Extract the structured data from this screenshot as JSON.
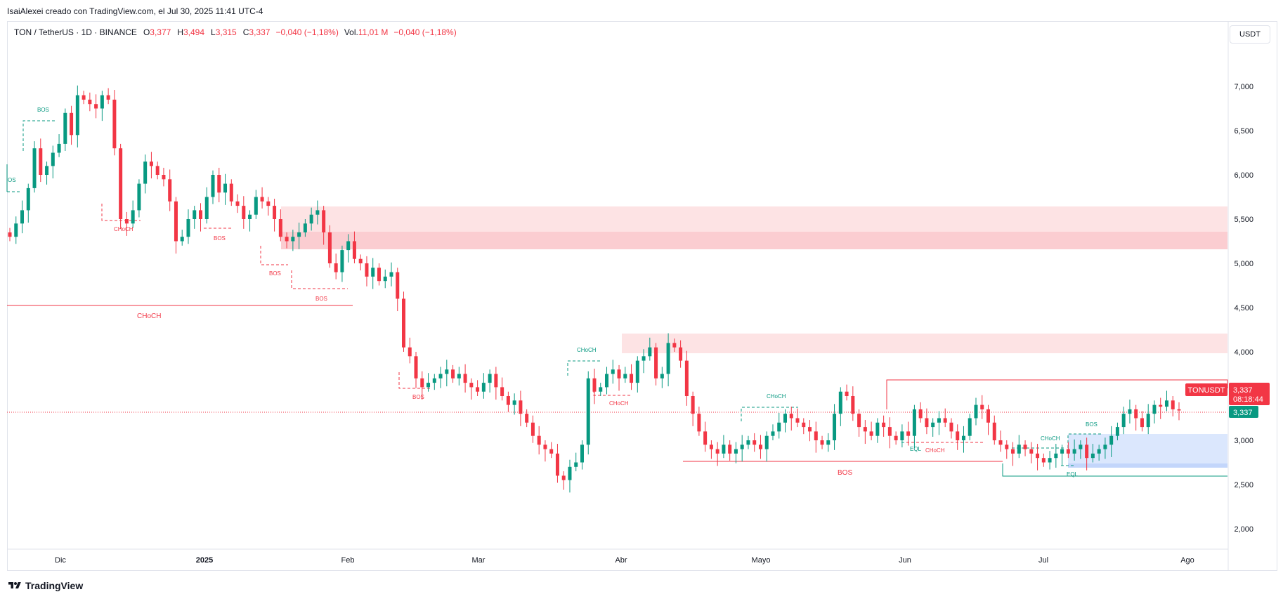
{
  "caption": "IsaiAlexei creado con TradingView.com, el Jul 30, 2025 11:41 UTC-4",
  "legend": {
    "symbol": "TON / TetherUS · 1D · BINANCE",
    "o_label": "O",
    "o_value": "3,377",
    "h_label": "H",
    "h_value": "3,494",
    "l_label": "L",
    "l_value": "3,315",
    "c_label": "C",
    "c_value": "3,337",
    "change": "−0,040 (−1,18%)",
    "vol_label": "Vol.",
    "vol_value": "11,01 M",
    "vol_change": "−0,040 (−1,18%)"
  },
  "currency_button": "USDT",
  "price_axis": {
    "ticks": [
      "7,000",
      "6,500",
      "6,000",
      "5,500",
      "5,000",
      "4,500",
      "4,000",
      "3,000",
      "2,500",
      "2,000"
    ],
    "symbol_tag": "TONUSDT",
    "last_price": "3,337",
    "countdown": "08:18:44",
    "last_price_green": "3,337"
  },
  "time_axis": {
    "labels": [
      "Dic",
      "2025",
      "Feb",
      "Mar",
      "Abr",
      "Mayo",
      "Jun",
      "Jul",
      "Ago"
    ]
  },
  "chart_data": {
    "type": "candlestick",
    "symbol": "TON / TetherUS",
    "interval": "1D",
    "exchange": "BINANCE",
    "ylim": [
      1.8,
      7.7
    ],
    "y_ticks": [
      2.0,
      2.5,
      3.0,
      4.0,
      4.5,
      5.0,
      5.5,
      6.0,
      6.5,
      7.0
    ],
    "closes": [
      5.3,
      5.45,
      5.6,
      5.85,
      6.3,
      6.0,
      6.1,
      6.25,
      6.35,
      6.7,
      6.45,
      6.9,
      6.85,
      6.8,
      6.75,
      6.9,
      6.85,
      6.3,
      5.5,
      5.45,
      5.6,
      5.9,
      6.15,
      6.1,
      6.0,
      5.95,
      5.7,
      5.25,
      5.3,
      5.5,
      5.6,
      5.5,
      5.75,
      6.0,
      5.8,
      5.9,
      5.7,
      5.65,
      5.5,
      5.55,
      5.75,
      5.7,
      5.65,
      5.5,
      5.3,
      5.25,
      5.3,
      5.35,
      5.45,
      5.55,
      5.6,
      5.35,
      5.0,
      4.9,
      5.15,
      5.25,
      5.05,
      5.0,
      4.85,
      4.95,
      4.8,
      4.85,
      4.9,
      4.6,
      4.05,
      3.95,
      3.7,
      3.6,
      3.65,
      3.7,
      3.75,
      3.8,
      3.7,
      3.75,
      3.65,
      3.6,
      3.55,
      3.65,
      3.75,
      3.6,
      3.5,
      3.4,
      3.45,
      3.3,
      3.2,
      3.05,
      2.95,
      2.9,
      2.85,
      2.6,
      2.55,
      2.7,
      2.75,
      2.95,
      3.7,
      3.55,
      3.6,
      3.75,
      3.8,
      3.7,
      3.75,
      3.65,
      3.9,
      3.95,
      4.05,
      3.7,
      3.75,
      4.1,
      4.05,
      3.9,
      3.5,
      3.3,
      3.1,
      2.95,
      2.9,
      2.85,
      2.95,
      2.85,
      2.9,
      2.95,
      3.0,
      2.95,
      2.9,
      3.05,
      3.1,
      3.2,
      3.3,
      3.25,
      3.2,
      3.15,
      3.1,
      3.0,
      2.95,
      3.0,
      3.3,
      3.55,
      3.5,
      3.3,
      3.15,
      3.1,
      3.05,
      3.2,
      3.15,
      3.05,
      3.0,
      3.1,
      3.05,
      3.35,
      3.25,
      3.15,
      3.2,
      3.25,
      3.2,
      3.1,
      3.0,
      3.05,
      3.25,
      3.4,
      3.35,
      3.2,
      3.0,
      2.95,
      2.9,
      2.85,
      2.95,
      2.9,
      2.85,
      2.8,
      2.75,
      2.8,
      2.85,
      2.9,
      2.85,
      2.9,
      2.95,
      2.8,
      2.85,
      2.9,
      2.95,
      3.05,
      3.15,
      3.3,
      3.35,
      3.25,
      3.15,
      3.3,
      3.4,
      3.38,
      3.45,
      3.35,
      3.337
    ]
  },
  "annotations": [
    {
      "text": "BOS",
      "color": "#089981"
    },
    {
      "text": "CHoCH",
      "color": "#f23645"
    },
    {
      "text": "BOS",
      "color": "#f23645"
    },
    {
      "text": "BOS",
      "color": "#f23645"
    },
    {
      "text": "BOS",
      "color": "#f23645"
    },
    {
      "text": "CHoCH",
      "color": "#f23645"
    },
    {
      "text": "BOS",
      "color": "#f23645"
    },
    {
      "text": "CHoCH",
      "color": "#089981"
    },
    {
      "text": "CHoCH",
      "color": "#f23645"
    },
    {
      "text": "CHoCH",
      "color": "#089981"
    },
    {
      "text": "BOS",
      "color": "#f23645"
    },
    {
      "text": "EQL",
      "color": "#089981"
    },
    {
      "text": "CHoCH",
      "color": "#f23645"
    },
    {
      "text": "CHoCH",
      "color": "#089981"
    },
    {
      "text": "BOS",
      "color": "#089981"
    },
    {
      "text": "EQL",
      "color": "#089981"
    },
    {
      "text": "OS",
      "color": "#089981"
    }
  ],
  "brand": "TradingView",
  "colors": {
    "up": "#089981",
    "down": "#f23645",
    "supply_zone": "#fde3e4",
    "supply_zone_dark": "#fbcdd1",
    "demand_zone": "#dbe7fd"
  }
}
